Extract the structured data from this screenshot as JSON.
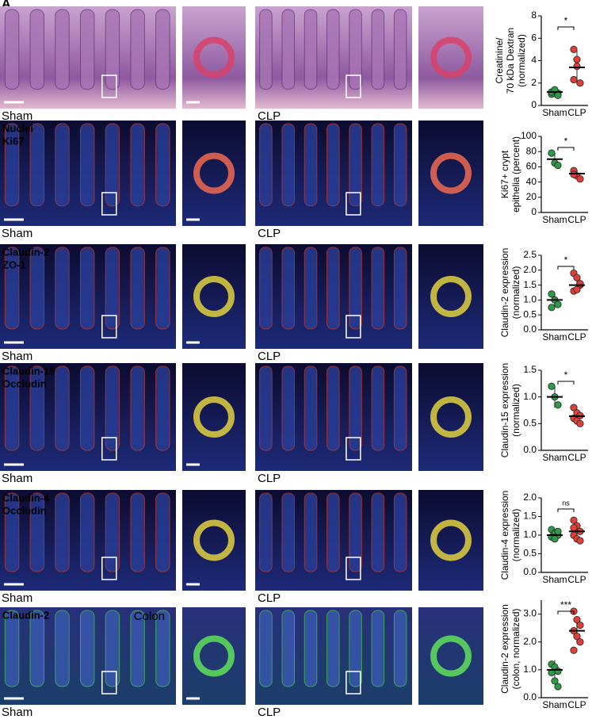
{
  "panel_letter": "A",
  "rows": [
    {
      "stains": [],
      "left": "Sham",
      "right": "CLP",
      "he": true
    },
    {
      "stains": [
        "Nuclei",
        "Ki67"
      ],
      "left": "Sham",
      "right": "CLP"
    },
    {
      "stains": [
        "Claudin-2",
        "ZO-1"
      ],
      "left": "Sham",
      "right": "CLP"
    },
    {
      "stains": [
        "Claudin-15",
        "Occludin"
      ],
      "left": "Sham",
      "right": "CLP"
    },
    {
      "stains": [
        "Claudin-4",
        "Occludin"
      ],
      "left": "Sham",
      "right": "CLP"
    },
    {
      "stains": [
        "Claudin-2"
      ],
      "region": "Colon",
      "left": "Sham",
      "right": "CLP"
    }
  ],
  "chart_data": [
    {
      "type": "dot",
      "ylabel": [
        "Creatinine/",
        "70 kDa Dextran",
        "(normalized)"
      ],
      "significance": "*",
      "ylim": [
        0,
        8
      ],
      "yticks": [
        0,
        2,
        4,
        6,
        8
      ],
      "series": [
        {
          "name": "Sham",
          "color": "#2e9a45",
          "values": [
            1.0,
            1.3,
            1.1,
            1.2,
            1.4,
            0.9
          ],
          "mean": 1.2,
          "sd": 0.2
        },
        {
          "name": "CLP",
          "color": "#e0403a",
          "values": [
            5.0,
            4.1,
            2.0,
            2.3,
            3.5
          ],
          "mean": 3.4,
          "sd": 1.5
        }
      ]
    },
    {
      "type": "dot",
      "ylabel": [
        "Ki67+ crypt",
        "epithelia (percent)"
      ],
      "significance": "*",
      "ylim": [
        0,
        100
      ],
      "yticks": [
        0,
        20,
        40,
        60,
        80,
        100
      ],
      "series": [
        {
          "name": "Sham",
          "color": "#2e9a45",
          "values": [
            78,
            65,
            62
          ],
          "mean": 70,
          "sd": 8
        },
        {
          "name": "CLP",
          "color": "#e0403a",
          "values": [
            55,
            48,
            44,
            50
          ],
          "mean": 51,
          "sd": 5
        }
      ]
    },
    {
      "type": "dot",
      "ylabel": [
        "Claudin-2 expression",
        "(normalized)"
      ],
      "significance": "*",
      "ylim": [
        0,
        2.5
      ],
      "yticks": [
        {
          "value": 0,
          "label": "0.0"
        },
        0.5,
        {
          "value": 1,
          "label": "1.0"
        },
        1.5,
        {
          "value": 2,
          "label": "2.0"
        },
        2.5
      ],
      "series": [
        {
          "name": "Sham",
          "color": "#2e9a45",
          "values": [
            1.2,
            1.0,
            0.85,
            0.75
          ],
          "mean": 1.0,
          "sd": 0.2
        },
        {
          "name": "CLP",
          "color": "#e0403a",
          "values": [
            1.9,
            1.75,
            1.5,
            1.3,
            1.35,
            1.55
          ],
          "mean": 1.5,
          "sd": 0.25
        }
      ]
    },
    {
      "type": "dot",
      "ylabel": [
        "Claudin-15 expression",
        "(normalized)"
      ],
      "significance": "*",
      "ylim": [
        0,
        1.5
      ],
      "yticks": [
        {
          "value": 0,
          "label": "0.0"
        },
        0.5,
        {
          "value": 1,
          "label": "1.0"
        },
        1.5
      ],
      "series": [
        {
          "name": "Sham",
          "color": "#2e9a45",
          "values": [
            1.2,
            1.0,
            0.85
          ],
          "mean": 1.0,
          "sd": 0.2
        },
        {
          "name": "CLP",
          "color": "#e0403a",
          "values": [
            0.8,
            0.7,
            0.65,
            0.6,
            0.55,
            0.5
          ],
          "mean": 0.64,
          "sd": 0.1
        }
      ]
    },
    {
      "type": "dot",
      "ylabel": [
        "Claudin-4 expression",
        "(normalized)"
      ],
      "significance": "ns",
      "ylim": [
        0,
        2
      ],
      "yticks": [
        {
          "value": 0,
          "label": "0.0"
        },
        0.5,
        {
          "value": 1,
          "label": "1.0"
        },
        1.5,
        {
          "value": 2,
          "label": "2.0"
        }
      ],
      "series": [
        {
          "name": "Sham",
          "color": "#2e9a45",
          "values": [
            1.15,
            1.05,
            1.0,
            0.95,
            0.9,
            1.1
          ],
          "mean": 1.0,
          "sd": 0.1
        },
        {
          "name": "CLP",
          "color": "#e0403a",
          "values": [
            1.4,
            1.25,
            1.1,
            1.0,
            0.9,
            0.85,
            1.2
          ],
          "mean": 1.1,
          "sd": 0.2
        }
      ]
    },
    {
      "type": "dot",
      "ylabel": [
        "Claudin-2 expression",
        "(colon, normalized)"
      ],
      "significance": "***",
      "ylim": [
        0,
        3.5
      ],
      "yticks": [
        {
          "value": 0,
          "label": "0.0"
        },
        {
          "value": 1,
          "label": "1.0"
        },
        {
          "value": 2,
          "label": "2.0"
        },
        {
          "value": 3,
          "label": "3.0"
        }
      ],
      "series": [
        {
          "name": "Sham",
          "color": "#2e9a45",
          "values": [
            1.2,
            1.1,
            0.95,
            0.9,
            0.6,
            0.4
          ],
          "mean": 1.0,
          "sd": 0.35
        },
        {
          "name": "CLP",
          "color": "#e0403a",
          "values": [
            3.1,
            2.8,
            2.6,
            2.4,
            2.2,
            2.0,
            1.7
          ],
          "mean": 2.4,
          "sd": 0.45
        }
      ]
    }
  ]
}
